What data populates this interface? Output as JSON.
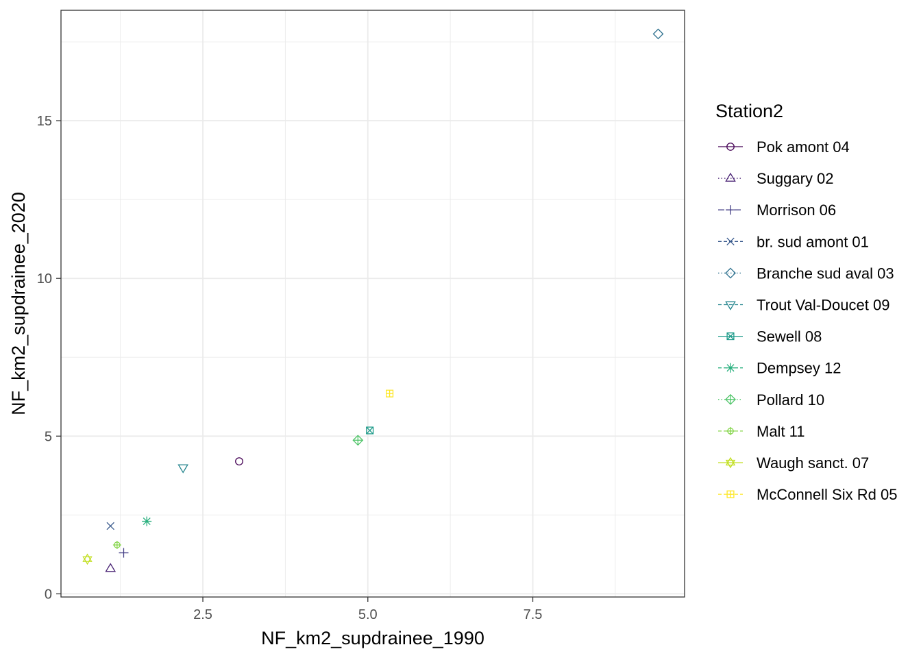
{
  "chart_data": {
    "type": "scatter",
    "xlabel": "NF_km2_supdrainee_1990",
    "ylabel": "NF_km2_supdrainee_2020",
    "xlim": [
      0.35,
      9.8
    ],
    "ylim": [
      -0.1,
      18.5
    ],
    "x_ticks": [
      2.5,
      5.0,
      7.5
    ],
    "x_tick_labels": [
      "2.5",
      "5.0",
      "7.5"
    ],
    "y_ticks": [
      0,
      5,
      10,
      15
    ],
    "y_tick_labels": [
      "0",
      "5",
      "10",
      "15"
    ],
    "grid": true,
    "legend": {
      "title": "Station2",
      "placement": "right"
    },
    "series": [
      {
        "name": "Pok amont 04",
        "shape": "circle",
        "linetype": "solid",
        "color": "#440154",
        "x": 3.05,
        "y": 4.2
      },
      {
        "name": "Suggary 02",
        "shape": "triangle",
        "linetype": "dotted",
        "color": "#482173",
        "x": 1.1,
        "y": 0.8
      },
      {
        "name": "Morrison 06",
        "shape": "plus",
        "linetype": "longdash",
        "color": "#433E85",
        "x": 1.3,
        "y": 1.3
      },
      {
        "name": "br. sud amont 01",
        "shape": "cross",
        "linetype": "dashed",
        "color": "#38598C",
        "x": 1.1,
        "y": 2.15
      },
      {
        "name": "Branche sud aval 03",
        "shape": "diamond",
        "linetype": "dotted",
        "color": "#2D708E",
        "x": 9.4,
        "y": 17.75
      },
      {
        "name": "Trout Val-Doucet 09",
        "shape": "triangle-down",
        "linetype": "dashed",
        "color": "#25858E",
        "x": 2.2,
        "y": 4.0
      },
      {
        "name": "Sewell 08",
        "shape": "square-cross",
        "linetype": "solid",
        "color": "#1E9B8A",
        "x": 5.03,
        "y": 5.18
      },
      {
        "name": "Dempsey 12",
        "shape": "asterisk",
        "linetype": "dashed",
        "color": "#2BB07F",
        "x": 1.65,
        "y": 2.3
      },
      {
        "name": "Pollard 10",
        "shape": "diamond-plus",
        "linetype": "dotted",
        "color": "#51C56A",
        "x": 4.85,
        "y": 4.87
      },
      {
        "name": "Malt 11",
        "shape": "circle-plus",
        "linetype": "dashed",
        "color": "#85D54A",
        "x": 1.2,
        "y": 1.55
      },
      {
        "name": "Waugh sanct. 07",
        "shape": "star-of-david",
        "linetype": "solid",
        "color": "#C2DF23",
        "x": 0.75,
        "y": 1.1
      },
      {
        "name": "McConnell Six Rd 05",
        "shape": "square-plus",
        "linetype": "dashed",
        "color": "#FDE725",
        "x": 5.33,
        "y": 6.35
      }
    ]
  }
}
